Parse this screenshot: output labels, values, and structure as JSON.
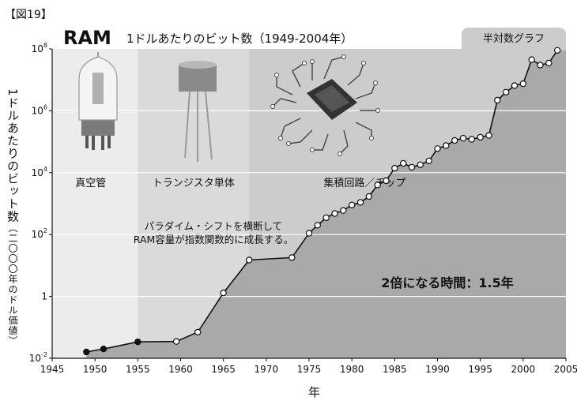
{
  "figure_label": "【図19】",
  "chart_data": {
    "type": "line",
    "title": "RAM",
    "subtitle": "1ドルあたりのビット数（1949-2004年）",
    "xlabel": "年",
    "ylabel": "1ドルあたりのビット数",
    "ylabel_unit": "（二〇〇〇年のドル価値）",
    "yscale": "log",
    "xlim": [
      1945,
      2005
    ],
    "ylim": [
      0.01,
      100000000
    ],
    "x_ticks": [
      "1945",
      "1950",
      "1955",
      "1960",
      "1965",
      "1970",
      "1975",
      "1980",
      "1985",
      "1990",
      "1995",
      "2000",
      "2005"
    ],
    "y_ticks": [
      {
        "base": "10",
        "exp": "-2",
        "value": 0.01
      },
      {
        "base": "1",
        "exp": "",
        "value": 1
      },
      {
        "base": "10",
        "exp": "2",
        "value": 100
      },
      {
        "base": "10",
        "exp": "4",
        "value": 10000
      },
      {
        "base": "10",
        "exp": "6",
        "value": 1000000
      },
      {
        "base": "10",
        "exp": "8",
        "value": 100000000
      }
    ],
    "grid": true,
    "scale_label": "半対数グラフ",
    "eras": [
      {
        "label": "真空管",
        "start": 1945,
        "end": 1955
      },
      {
        "label": "トランジスタ単体",
        "start": 1955,
        "end": 1968
      },
      {
        "label": "集積回路／チップ",
        "start": 1968,
        "end": 2005
      }
    ],
    "annotations": [
      "パラダイム・シフトを横断して",
      "RAM容量が指数関数的に成長する。"
    ],
    "callout": "2倍になる時間：1.5年",
    "series": [
      {
        "points": [
          {
            "x": 1949,
            "y": 0.016,
            "style": "filled"
          },
          {
            "x": 1951,
            "y": 0.02,
            "style": "filled"
          },
          {
            "x": 1955,
            "y": 0.034,
            "style": "filled"
          },
          {
            "x": 1959.5,
            "y": 0.035,
            "style": "open"
          },
          {
            "x": 1962,
            "y": 0.07,
            "style": "open"
          },
          {
            "x": 1965,
            "y": 1.3,
            "style": "open"
          },
          {
            "x": 1968,
            "y": 15,
            "style": "open"
          },
          {
            "x": 1973,
            "y": 18,
            "style": "open"
          },
          {
            "x": 1975,
            "y": 110,
            "style": "open"
          },
          {
            "x": 1976,
            "y": 200,
            "style": "open"
          },
          {
            "x": 1977,
            "y": 350,
            "style": "open"
          },
          {
            "x": 1978,
            "y": 480,
            "style": "open"
          },
          {
            "x": 1979,
            "y": 600,
            "style": "open"
          },
          {
            "x": 1980,
            "y": 900,
            "style": "open"
          },
          {
            "x": 1981,
            "y": 1100,
            "style": "open"
          },
          {
            "x": 1982,
            "y": 1700,
            "style": "open"
          },
          {
            "x": 1983,
            "y": 4000,
            "style": "open"
          },
          {
            "x": 1984,
            "y": 5500,
            "style": "open"
          },
          {
            "x": 1985,
            "y": 14000,
            "style": "open"
          },
          {
            "x": 1986,
            "y": 20000,
            "style": "open"
          },
          {
            "x": 1987,
            "y": 15000,
            "style": "open"
          },
          {
            "x": 1988,
            "y": 18000,
            "style": "open"
          },
          {
            "x": 1989,
            "y": 24000,
            "style": "open"
          },
          {
            "x": 1990,
            "y": 60000,
            "style": "open"
          },
          {
            "x": 1991,
            "y": 75000,
            "style": "open"
          },
          {
            "x": 1992,
            "y": 110000,
            "style": "open"
          },
          {
            "x": 1993,
            "y": 130000,
            "style": "open"
          },
          {
            "x": 1994,
            "y": 120000,
            "style": "open"
          },
          {
            "x": 1995,
            "y": 140000,
            "style": "open"
          },
          {
            "x": 1996,
            "y": 160000,
            "style": "open"
          },
          {
            "x": 1997,
            "y": 2200000,
            "style": "open"
          },
          {
            "x": 1998,
            "y": 4000000,
            "style": "open"
          },
          {
            "x": 1999,
            "y": 6500000,
            "style": "open"
          },
          {
            "x": 2000,
            "y": 7500000,
            "style": "open"
          },
          {
            "x": 2001,
            "y": 45000000,
            "style": "open"
          },
          {
            "x": 2002,
            "y": 30000000,
            "style": "open"
          },
          {
            "x": 2003,
            "y": 35000000,
            "style": "open"
          },
          {
            "x": 2004,
            "y": 90000000,
            "style": "open"
          }
        ]
      }
    ],
    "colors": {
      "era1": "#ececec",
      "era2": "#dadada",
      "era3": "#cccccc",
      "area": "#a9a9a9",
      "grid": "#ffffff",
      "line": "#111111"
    }
  }
}
